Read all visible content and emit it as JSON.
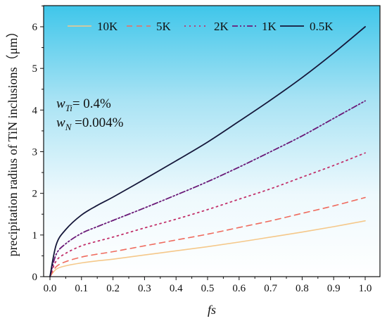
{
  "chart_data": {
    "type": "line",
    "title": "",
    "xlabel": "fs",
    "ylabel": "precipitation radius of TiN inclusions（μm）",
    "xlim": [
      0.0,
      1.0
    ],
    "ylim": [
      0,
      6.5
    ],
    "xticks": [
      "0.0",
      "0.1",
      "0.2",
      "0.3",
      "0.4",
      "0.5",
      "0.6",
      "0.7",
      "0.8",
      "0.9",
      "1.0"
    ],
    "yticks": [
      "0",
      "1",
      "2",
      "3",
      "4",
      "5",
      "6"
    ],
    "legend_position": "top",
    "background": "gradient sky blue (top) to white (bottom)",
    "x": [
      0.0,
      0.02,
      0.05,
      0.1,
      0.15,
      0.2,
      0.3,
      0.4,
      0.5,
      0.6,
      0.7,
      0.8,
      0.9,
      1.0
    ],
    "series": [
      {
        "name": "10K",
        "color": "#f5c88a",
        "dash": "solid",
        "width": 1.6,
        "values": [
          0.0,
          0.18,
          0.26,
          0.33,
          0.38,
          0.42,
          0.52,
          0.62,
          0.72,
          0.83,
          0.95,
          1.07,
          1.2,
          1.34
        ]
      },
      {
        "name": "5K",
        "color": "#ef6b5e",
        "dash": "8,6",
        "width": 1.6,
        "values": [
          0.0,
          0.24,
          0.36,
          0.47,
          0.54,
          0.6,
          0.74,
          0.88,
          1.02,
          1.18,
          1.34,
          1.52,
          1.7,
          1.9
        ]
      },
      {
        "name": "2K",
        "color": "#c2306a",
        "dash": "2,5",
        "width": 1.8,
        "values": [
          0.0,
          0.38,
          0.56,
          0.74,
          0.85,
          0.95,
          1.17,
          1.38,
          1.61,
          1.86,
          2.11,
          2.39,
          2.67,
          2.97
        ]
      },
      {
        "name": "1K",
        "color": "#6a1a78",
        "dash": "8,3,2,3,2,3",
        "width": 1.8,
        "values": [
          0.0,
          0.54,
          0.79,
          1.04,
          1.2,
          1.35,
          1.65,
          1.96,
          2.28,
          2.63,
          3.0,
          3.38,
          3.8,
          4.22
        ]
      },
      {
        "name": "0.5K",
        "color": "#15173a",
        "dash": "solid",
        "width": 1.8,
        "values": [
          0.0,
          0.77,
          1.13,
          1.48,
          1.71,
          1.91,
          2.34,
          2.78,
          3.23,
          3.73,
          4.24,
          4.78,
          5.37,
          6.0
        ]
      }
    ],
    "annotations": [
      {
        "text_main": "w",
        "text_sub": "Ti",
        "text_rest": "= 0.4%"
      },
      {
        "text_main": "w",
        "text_sub": "N",
        "text_rest": " =0.004%"
      }
    ]
  }
}
